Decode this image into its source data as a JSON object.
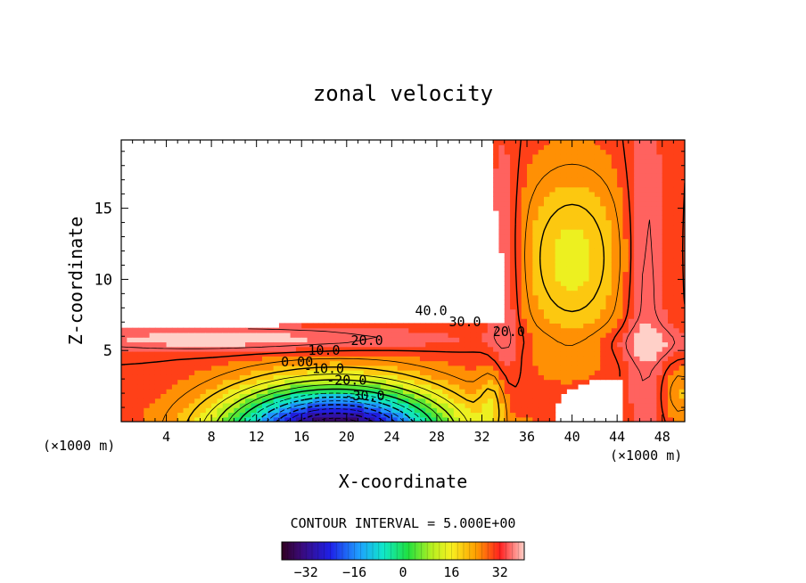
{
  "chart_data": {
    "type": "heatmap",
    "title": "zonal velocity",
    "xlabel": "X-coordinate",
    "ylabel": "Z-coordinate",
    "x_unit": "(×1000 m)",
    "y_unit": "(×1000 m)",
    "xlim": [
      0,
      50
    ],
    "ylim": [
      0,
      19.8
    ],
    "x_ticks": [
      4,
      8,
      12,
      16,
      20,
      24,
      28,
      32,
      36,
      40,
      44,
      48
    ],
    "y_ticks": [
      5,
      10,
      15
    ],
    "contour_interval_text": "CONTOUR INTERVAL = 5.000E+00",
    "contour_labels": [
      {
        "text": "40.0",
        "x": 27.5,
        "z": 7.5
      },
      {
        "text": "30.0",
        "x": 30.5,
        "z": 6.7
      },
      {
        "text": "20.0",
        "x": 34.4,
        "z": 6.0
      },
      {
        "text": "20.0",
        "x": 21.8,
        "z": 5.4
      },
      {
        "text": "10.0",
        "x": 18.0,
        "z": 4.7
      },
      {
        "text": "0.00",
        "x": 15.6,
        "z": 3.9
      },
      {
        "text": "-10.0",
        "x": 18.0,
        "z": 3.4
      },
      {
        "text": "-20.0",
        "x": 20.0,
        "z": 2.6
      },
      {
        "text": "-30.0",
        "x": 21.6,
        "z": 1.5
      }
    ],
    "colorbar": {
      "range": [
        -40,
        40
      ],
      "ticks": [
        -32,
        -16,
        0,
        16,
        32
      ],
      "tick_labels": [
        "−32",
        "−16",
        "0",
        "16",
        "32"
      ]
    },
    "field": {
      "description_blank_regions": "undefined above terrain at upper-left and near lower-right",
      "max": 40,
      "min": -40
    }
  }
}
